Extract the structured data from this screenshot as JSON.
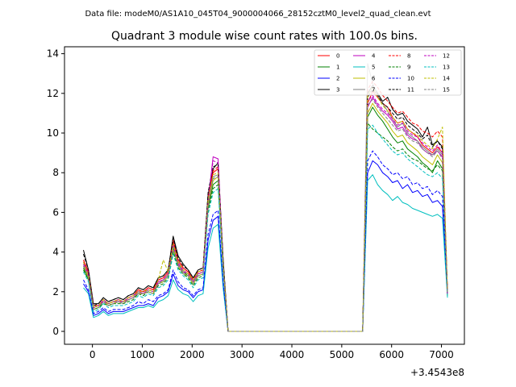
{
  "figure": {
    "suptitle": "Data file: modeM0/AS1A10_045T04_9000004066_28152cztM0_level2_quad_clean.evt",
    "title": "Quadrant 3 module wise count rates with 100.0s bins.",
    "x_offset_label": "+3.4543e8"
  },
  "chart_data": {
    "type": "line",
    "title": "Quadrant 3 module wise count rates with 100.0s bins.",
    "xlabel": "",
    "ylabel": "",
    "xlim": [
      -560,
      7460
    ],
    "ylim": [
      -0.65,
      14.35
    ],
    "xticks": [
      0,
      1000,
      2000,
      3000,
      4000,
      5000,
      6000,
      7000
    ],
    "xtick_labels": [
      "0",
      "1000",
      "2000",
      "3000",
      "4000",
      "5000",
      "6000",
      "7000"
    ],
    "yticks": [
      0,
      2,
      4,
      6,
      8,
      10,
      12,
      14
    ],
    "ytick_labels": [
      "0",
      "2",
      "4",
      "6",
      "8",
      "10",
      "12",
      "14"
    ],
    "legend_position": "top-right",
    "legend_columns": 4,
    "x": [
      -180,
      -80,
      20,
      120,
      220,
      320,
      420,
      520,
      620,
      720,
      820,
      920,
      1020,
      1120,
      1220,
      1320,
      1420,
      1520,
      1620,
      1720,
      1820,
      1920,
      2020,
      2120,
      2220,
      2320,
      2420,
      2520,
      2620,
      2720,
      2820,
      5420,
      5520,
      5620,
      5720,
      5820,
      5920,
      6020,
      6120,
      6220,
      6320,
      6420,
      6520,
      6620,
      6720,
      6820,
      6920,
      7020,
      7120
    ],
    "series": [
      {
        "name": "0",
        "color": "#ff0000",
        "dash": "solid",
        "values": [
          3.6,
          3.0,
          1.2,
          1.3,
          1.6,
          1.4,
          1.5,
          1.6,
          1.5,
          1.7,
          1.8,
          2.1,
          2.0,
          2.2,
          2.1,
          2.6,
          2.7,
          3.0,
          4.5,
          3.6,
          3.2,
          3.0,
          2.6,
          3.0,
          3.1,
          6.7,
          8.0,
          8.2,
          3.5,
          0.0,
          0.0,
          0.0,
          11.5,
          12.1,
          11.8,
          11.5,
          11.3,
          10.8,
          10.5,
          10.6,
          10.2,
          10.0,
          9.8,
          9.4,
          9.2,
          9.0,
          9.3,
          9.0,
          1.9
        ]
      },
      {
        "name": "1",
        "color": "#008000",
        "dash": "solid",
        "values": [
          3.2,
          2.6,
          1.1,
          1.2,
          1.5,
          1.3,
          1.4,
          1.5,
          1.4,
          1.6,
          1.7,
          1.9,
          1.9,
          2.0,
          1.9,
          2.4,
          2.5,
          2.8,
          4.2,
          3.4,
          3.0,
          2.8,
          2.4,
          2.8,
          2.9,
          6.2,
          7.4,
          7.6,
          3.3,
          0.0,
          0.0,
          0.0,
          10.8,
          11.3,
          10.9,
          10.6,
          10.2,
          9.8,
          9.5,
          9.6,
          9.2,
          9.0,
          8.8,
          8.5,
          8.3,
          8.0,
          8.6,
          8.2,
          1.8
        ]
      },
      {
        "name": "2",
        "color": "#0000ff",
        "dash": "solid",
        "values": [
          2.4,
          2.0,
          0.8,
          0.9,
          1.1,
          0.9,
          1.0,
          1.0,
          1.0,
          1.1,
          1.2,
          1.3,
          1.3,
          1.4,
          1.3,
          1.7,
          1.8,
          2.0,
          2.9,
          2.3,
          2.1,
          2.0,
          1.7,
          2.0,
          2.1,
          4.6,
          5.6,
          5.8,
          2.4,
          0.0,
          0.0,
          0.0,
          8.0,
          8.6,
          8.4,
          8.0,
          7.8,
          7.5,
          7.6,
          7.2,
          7.4,
          7.0,
          7.1,
          6.8,
          6.9,
          6.5,
          6.6,
          6.3,
          1.9
        ]
      },
      {
        "name": "3",
        "color": "#000000",
        "dash": "solid",
        "values": [
          4.1,
          3.1,
          1.4,
          1.4,
          1.7,
          1.5,
          1.6,
          1.7,
          1.6,
          1.8,
          1.9,
          2.2,
          2.1,
          2.3,
          2.2,
          2.7,
          2.8,
          3.1,
          4.8,
          3.8,
          3.4,
          3.1,
          2.7,
          3.1,
          3.2,
          6.9,
          8.2,
          8.5,
          3.7,
          0.0,
          0.0,
          0.0,
          12.0,
          12.4,
          12.0,
          11.6,
          11.8,
          11.2,
          10.9,
          11.0,
          10.6,
          10.4,
          10.2,
          9.8,
          10.3,
          9.4,
          9.6,
          9.3,
          2.0
        ]
      },
      {
        "name": "4",
        "color": "#bf00bf",
        "dash": "solid",
        "values": [
          3.5,
          2.9,
          1.2,
          1.3,
          1.6,
          1.4,
          1.5,
          1.6,
          1.5,
          1.7,
          1.8,
          2.0,
          2.0,
          2.1,
          2.0,
          2.5,
          2.6,
          2.9,
          4.4,
          3.5,
          3.1,
          2.9,
          2.5,
          2.9,
          3.0,
          6.6,
          8.8,
          8.7,
          3.4,
          0.0,
          0.0,
          0.0,
          11.3,
          11.8,
          11.4,
          11.1,
          10.9,
          10.6,
          10.2,
          10.3,
          9.9,
          9.7,
          9.6,
          9.2,
          9.0,
          8.9,
          9.1,
          8.8,
          1.9
        ]
      },
      {
        "name": "5",
        "color": "#00bfbf",
        "dash": "solid",
        "values": [
          2.2,
          1.9,
          0.7,
          0.8,
          1.0,
          0.8,
          0.9,
          0.9,
          0.9,
          1.0,
          1.1,
          1.2,
          1.2,
          1.3,
          1.2,
          1.5,
          1.6,
          1.8,
          2.6,
          2.1,
          1.9,
          1.8,
          1.5,
          1.8,
          1.9,
          4.2,
          5.2,
          5.4,
          2.2,
          0.0,
          0.0,
          0.0,
          7.6,
          7.9,
          7.4,
          7.1,
          6.9,
          6.6,
          6.8,
          6.5,
          6.4,
          6.2,
          6.1,
          6.0,
          5.9,
          5.8,
          5.9,
          5.7,
          1.7
        ]
      },
      {
        "name": "6",
        "color": "#bfbf00",
        "dash": "solid",
        "values": [
          3.3,
          2.7,
          1.1,
          1.2,
          1.5,
          1.3,
          1.4,
          1.5,
          1.4,
          1.6,
          1.7,
          1.9,
          1.9,
          2.0,
          1.9,
          2.4,
          2.5,
          2.8,
          4.1,
          3.3,
          2.9,
          2.8,
          2.4,
          2.8,
          2.9,
          6.3,
          7.6,
          7.8,
          3.3,
          0.0,
          0.0,
          0.0,
          11.0,
          11.5,
          11.1,
          10.8,
          10.5,
          10.1,
          9.8,
          9.9,
          9.5,
          9.3,
          9.1,
          8.8,
          8.6,
          8.4,
          8.9,
          8.5,
          1.8
        ]
      },
      {
        "name": "7",
        "color": "#808080",
        "dash": "solid",
        "values": [
          3.4,
          2.8,
          1.2,
          1.3,
          1.5,
          1.4,
          1.5,
          1.5,
          1.5,
          1.6,
          1.7,
          2.0,
          1.9,
          2.1,
          2.0,
          2.4,
          2.6,
          2.9,
          4.3,
          3.4,
          3.0,
          2.9,
          2.5,
          2.9,
          3.0,
          6.4,
          7.8,
          7.9,
          3.4,
          0.0,
          0.0,
          0.0,
          13.5,
          12.5,
          11.9,
          11.5,
          11.1,
          10.7,
          10.3,
          10.5,
          10.0,
          9.8,
          9.6,
          9.3,
          9.1,
          8.9,
          9.2,
          8.9,
          1.9
        ]
      },
      {
        "name": "8",
        "color": "#ff0000",
        "dash": "dashed",
        "values": [
          3.6,
          3.0,
          1.3,
          1.3,
          1.6,
          1.4,
          1.5,
          1.6,
          1.5,
          1.7,
          1.8,
          2.1,
          2.0,
          2.2,
          2.1,
          2.6,
          2.7,
          3.0,
          4.6,
          3.6,
          3.2,
          3.0,
          2.6,
          3.0,
          3.1,
          6.8,
          8.1,
          8.3,
          3.5,
          0.0,
          0.0,
          0.0,
          12.2,
          12.6,
          12.3,
          11.9,
          11.6,
          11.3,
          11.0,
          11.1,
          10.8,
          10.5,
          10.4,
          10.1,
          10.0,
          9.8,
          10.1,
          9.8,
          2.0
        ]
      },
      {
        "name": "9",
        "color": "#008000",
        "dash": "dashed",
        "values": [
          3.1,
          2.6,
          1.1,
          1.2,
          1.4,
          1.3,
          1.4,
          1.4,
          1.4,
          1.5,
          1.6,
          1.9,
          1.8,
          2.0,
          1.9,
          2.3,
          2.4,
          2.7,
          4.0,
          3.2,
          2.9,
          2.7,
          2.3,
          2.7,
          2.8,
          6.1,
          7.2,
          7.4,
          3.2,
          0.0,
          0.0,
          0.0,
          10.5,
          10.2,
          10.0,
          9.8,
          9.6,
          9.3,
          9.1,
          9.2,
          8.9,
          8.7,
          8.6,
          8.4,
          8.2,
          8.1,
          8.4,
          8.1,
          1.8
        ]
      },
      {
        "name": "10",
        "color": "#0000ff",
        "dash": "dashed",
        "values": [
          2.6,
          2.1,
          0.9,
          1.0,
          1.2,
          1.0,
          1.1,
          1.1,
          1.1,
          1.2,
          1.3,
          1.5,
          1.4,
          1.6,
          1.5,
          1.8,
          1.9,
          2.1,
          3.1,
          2.5,
          2.2,
          2.1,
          1.8,
          2.1,
          2.2,
          4.9,
          5.9,
          6.1,
          2.5,
          0.0,
          0.0,
          0.0,
          8.6,
          9.1,
          8.8,
          8.4,
          8.2,
          7.9,
          8.0,
          7.7,
          7.8,
          7.4,
          7.5,
          7.2,
          7.3,
          6.9,
          7.1,
          6.8,
          1.9
        ]
      },
      {
        "name": "11",
        "color": "#000000",
        "dash": "dashed",
        "values": [
          3.9,
          3.1,
          1.3,
          1.4,
          1.7,
          1.5,
          1.6,
          1.7,
          1.6,
          1.8,
          1.9,
          2.2,
          2.1,
          2.3,
          2.2,
          2.7,
          2.8,
          3.1,
          4.7,
          3.7,
          3.3,
          3.1,
          2.7,
          3.1,
          3.2,
          7.0,
          8.3,
          8.4,
          3.6,
          0.0,
          0.0,
          0.0,
          11.8,
          12.2,
          11.9,
          11.5,
          11.3,
          11.0,
          10.7,
          10.8,
          10.4,
          10.2,
          10.0,
          9.7,
          9.9,
          9.3,
          9.6,
          9.2,
          2.0
        ]
      },
      {
        "name": "12",
        "color": "#bf00bf",
        "dash": "dashed",
        "values": [
          3.4,
          2.8,
          1.2,
          1.3,
          1.5,
          1.4,
          1.5,
          1.5,
          1.5,
          1.6,
          1.7,
          2.0,
          1.9,
          2.1,
          2.0,
          2.5,
          2.6,
          2.9,
          4.3,
          3.4,
          3.0,
          2.9,
          2.5,
          2.9,
          3.0,
          6.5,
          8.6,
          8.5,
          3.4,
          0.0,
          0.0,
          0.0,
          11.6,
          11.9,
          11.5,
          11.2,
          11.0,
          10.7,
          10.4,
          10.5,
          10.1,
          9.9,
          9.8,
          9.5,
          9.3,
          9.1,
          9.4,
          9.0,
          1.9
        ]
      },
      {
        "name": "13",
        "color": "#00bfbf",
        "dash": "dashed",
        "values": [
          3.0,
          2.5,
          1.0,
          1.1,
          1.4,
          1.2,
          1.3,
          1.3,
          1.3,
          1.4,
          1.5,
          1.8,
          1.7,
          1.9,
          1.8,
          2.2,
          2.3,
          2.6,
          3.9,
          3.1,
          2.8,
          2.6,
          2.2,
          2.6,
          2.7,
          5.9,
          7.0,
          7.2,
          3.1,
          0.0,
          0.0,
          0.0,
          10.2,
          10.4,
          10.0,
          9.7,
          9.4,
          9.1,
          8.9,
          9.0,
          8.7,
          8.5,
          8.3,
          8.1,
          7.9,
          7.8,
          8.0,
          7.7,
          1.8
        ]
      },
      {
        "name": "14",
        "color": "#bfbf00",
        "dash": "dashed",
        "values": [
          3.5,
          2.8,
          1.2,
          1.3,
          1.6,
          1.4,
          1.5,
          1.6,
          1.5,
          1.7,
          1.8,
          2.0,
          2.0,
          2.1,
          2.0,
          2.6,
          3.6,
          3.0,
          4.4,
          3.5,
          3.1,
          2.9,
          2.6,
          3.0,
          3.1,
          6.6,
          7.9,
          8.0,
          3.4,
          0.0,
          0.0,
          0.0,
          11.9,
          12.3,
          11.8,
          11.4,
          11.1,
          10.8,
          10.5,
          10.6,
          10.2,
          10.0,
          9.9,
          9.6,
          9.4,
          9.2,
          9.7,
          10.3,
          2.0
        ]
      },
      {
        "name": "15",
        "color": "#808080",
        "dash": "dashed",
        "values": [
          3.3,
          2.7,
          1.1,
          1.2,
          1.5,
          1.3,
          1.4,
          1.5,
          1.4,
          1.6,
          1.7,
          1.9,
          1.9,
          2.0,
          1.9,
          2.4,
          2.5,
          2.8,
          4.2,
          3.3,
          2.9,
          2.8,
          2.4,
          2.8,
          2.9,
          6.3,
          7.7,
          7.8,
          3.3,
          0.0,
          0.0,
          0.0,
          11.4,
          11.7,
          11.3,
          11.0,
          10.7,
          10.4,
          10.1,
          10.2,
          9.8,
          9.6,
          9.5,
          9.2,
          9.0,
          8.8,
          9.1,
          8.7,
          1.9
        ]
      }
    ]
  }
}
